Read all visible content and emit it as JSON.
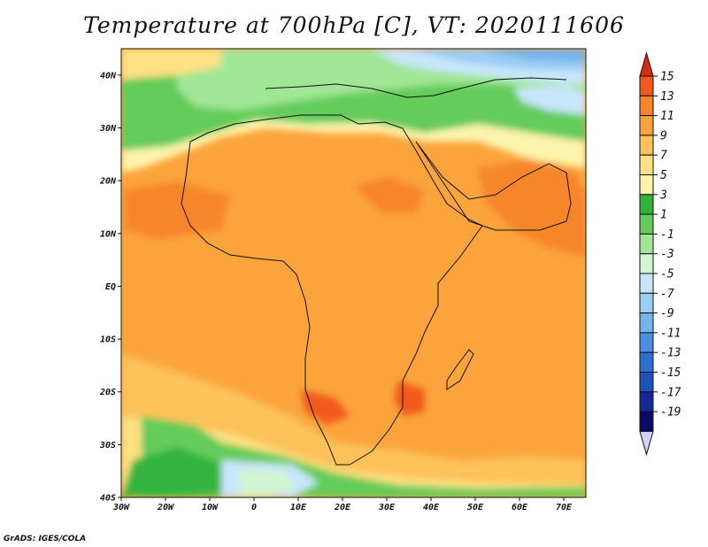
{
  "title": "Temperature at 700hPa [C], VT: 2020111606",
  "credit": "GrADS: IGES/COLA",
  "chart_data": {
    "type": "heatmap",
    "title": "Temperature at 700hPa [C], VT: 2020111606",
    "variable": "Temperature",
    "units": "C",
    "level": "700hPa",
    "valid_time": "2020111606",
    "xlim": [
      -30,
      75
    ],
    "ylim": [
      -40,
      45
    ],
    "x_ticks": [
      {
        "value": -30,
        "label": "30W"
      },
      {
        "value": -20,
        "label": "20W"
      },
      {
        "value": -10,
        "label": "10W"
      },
      {
        "value": 0,
        "label": "0"
      },
      {
        "value": 10,
        "label": "10E"
      },
      {
        "value": 20,
        "label": "20E"
      },
      {
        "value": 30,
        "label": "30E"
      },
      {
        "value": 40,
        "label": "40E"
      },
      {
        "value": 50,
        "label": "50E"
      },
      {
        "value": 60,
        "label": "60E"
      },
      {
        "value": 70,
        "label": "70E"
      }
    ],
    "y_ticks": [
      {
        "value": 40,
        "label": "40N"
      },
      {
        "value": 30,
        "label": "30N"
      },
      {
        "value": 20,
        "label": "20N"
      },
      {
        "value": 10,
        "label": "10N"
      },
      {
        "value": 0,
        "label": "EQ"
      },
      {
        "value": -10,
        "label": "10S"
      },
      {
        "value": -20,
        "label": "20S"
      },
      {
        "value": -30,
        "label": "30S"
      },
      {
        "value": -40,
        "label": "40S"
      }
    ],
    "colorbar": {
      "orientation": "vertical",
      "position": "right",
      "labels": [
        "15",
        "13",
        "11",
        "9",
        "7",
        "5",
        "3",
        "1",
        "-1",
        "-3",
        "-5",
        "-7",
        "-9",
        "-11",
        "-13",
        "-15",
        "-17",
        "-19"
      ],
      "colors": [
        "#dc2a14",
        "#f15a1e",
        "#f7852a",
        "#fba43c",
        "#fdc25a",
        "#fde184",
        "#fdf4ac",
        "#32b43c",
        "#64cc5a",
        "#a0e696",
        "#d2f5d2",
        "#c8e6fa",
        "#9bcdf5",
        "#73b4eb",
        "#4b8fe1",
        "#2d6ed2",
        "#1e50be",
        "#142896",
        "#0a0a64",
        "#d2d2f5"
      ]
    }
  }
}
